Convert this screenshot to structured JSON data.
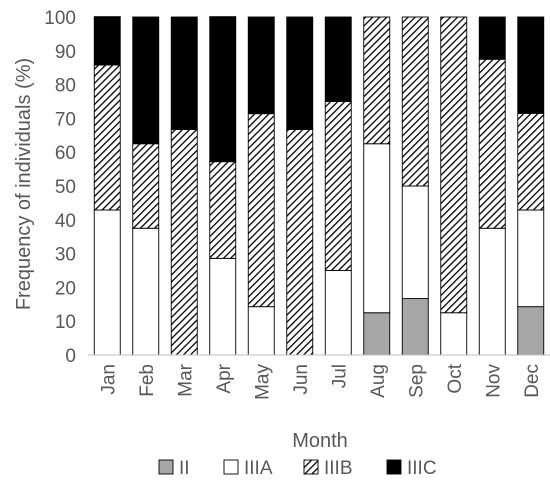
{
  "chart_data": {
    "type": "bar",
    "stacked": true,
    "title": "",
    "xlabel": "Month",
    "ylabel": "Frequency of individuals (%)",
    "ylim": [
      0,
      100
    ],
    "yticks": [
      0,
      10,
      20,
      30,
      40,
      50,
      60,
      70,
      80,
      90,
      100
    ],
    "grid": false,
    "legend": "bottom",
    "categories": [
      "Jan",
      "Feb",
      "Mar",
      "Apr",
      "May",
      "Jun",
      "Jul",
      "Aug",
      "Sep",
      "Oct",
      "Nov",
      "Dec"
    ],
    "series": [
      {
        "name": "II",
        "fill": "solid-gray",
        "color": "#a6a6a6",
        "values": [
          0,
          0,
          0,
          0,
          0,
          0,
          0,
          12.5,
          16.7,
          0,
          0,
          14.3
        ]
      },
      {
        "name": "IIIA",
        "fill": "white",
        "color": "#ffffff",
        "values": [
          42.9,
          37.5,
          0,
          28.6,
          14.3,
          0,
          25,
          50,
          33.3,
          12.5,
          37.5,
          28.6
        ]
      },
      {
        "name": "IIIB",
        "fill": "diagonal-hatch",
        "color": "#000000",
        "values": [
          42.9,
          25,
          66.7,
          28.6,
          57.1,
          66.7,
          50,
          37.5,
          50,
          87.5,
          50,
          28.6
        ]
      },
      {
        "name": "IIIC",
        "fill": "solid-black",
        "color": "#000000",
        "values": [
          14.3,
          37.5,
          33.3,
          42.9,
          28.6,
          33.3,
          25,
          0,
          0,
          0,
          12.5,
          28.5
        ]
      }
    ]
  }
}
